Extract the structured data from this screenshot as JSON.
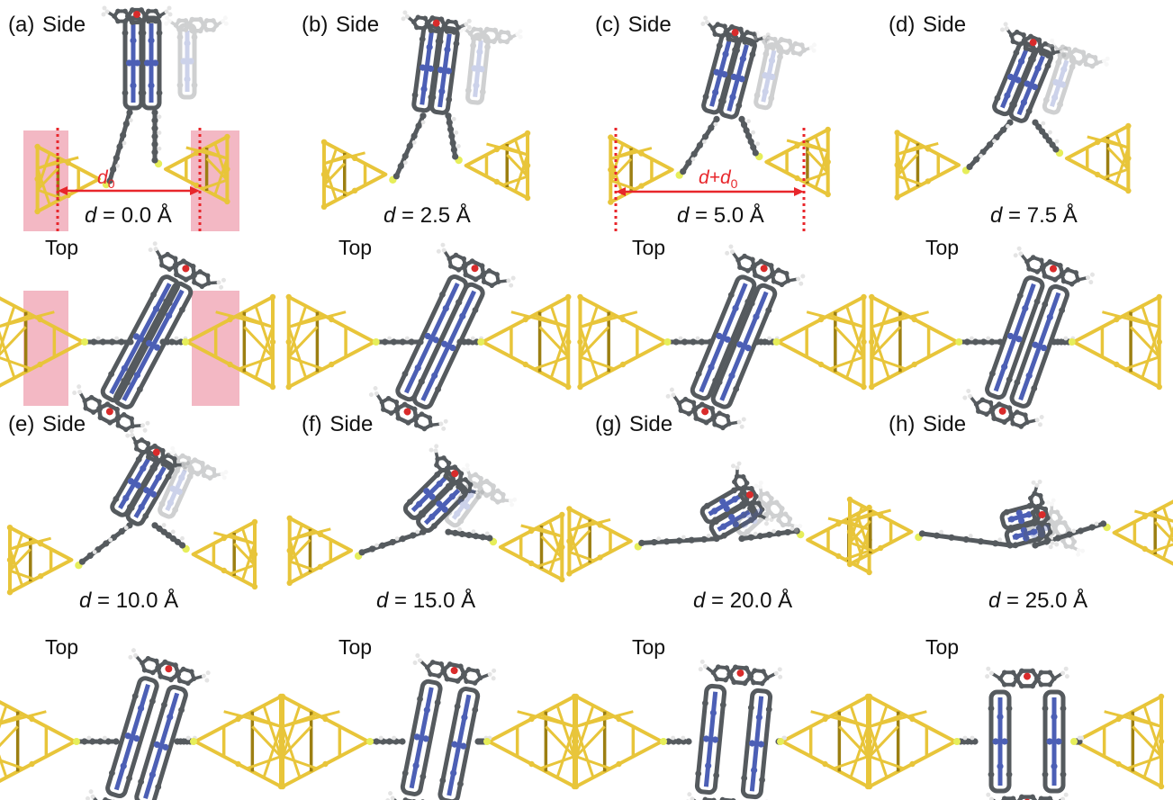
{
  "panels": [
    {
      "tag": "(a)",
      "side": "Side",
      "top": "Top",
      "d_symbol": "d",
      "d_value": "= 0.0 Å",
      "annotation": "d",
      "annotation_sub": "0",
      "shaded": true,
      "separation": 0
    },
    {
      "tag": "(b)",
      "side": "Side",
      "top": "Top",
      "d_symbol": "d",
      "d_value": "= 2.5 Å",
      "annotation": "",
      "annotation_sub": "",
      "shaded": false,
      "separation": 2.5
    },
    {
      "tag": "(c)",
      "side": "Side",
      "top": "Top",
      "d_symbol": "d",
      "d_value": "= 5.0 Å",
      "annotation": "d+d",
      "annotation_sub": "0",
      "shaded": false,
      "separation": 5.0
    },
    {
      "tag": "(d)",
      "side": "Side",
      "top": "Top",
      "d_symbol": "d",
      "d_value": "= 7.5 Å",
      "annotation": "",
      "annotation_sub": "",
      "shaded": false,
      "separation": 7.5
    },
    {
      "tag": "(e)",
      "side": "Side",
      "top": "Top",
      "d_symbol": "d",
      "d_value": "= 10.0 Å",
      "annotation": "",
      "annotation_sub": "",
      "shaded": false,
      "separation": 10.0
    },
    {
      "tag": "(f)",
      "side": "Side",
      "top": "Top",
      "d_symbol": "d",
      "d_value": "= 15.0 Å",
      "annotation": "",
      "annotation_sub": "",
      "shaded": false,
      "separation": 15.0
    },
    {
      "tag": "(g)",
      "side": "Side",
      "top": "Top",
      "d_symbol": "d",
      "d_value": "= 20.0 Å",
      "annotation": "",
      "annotation_sub": "",
      "shaded": false,
      "separation": 20.0
    },
    {
      "tag": "(h)",
      "side": "Side",
      "top": "Top",
      "d_symbol": "d",
      "d_value": "= 25.0 Å",
      "annotation": "",
      "annotation_sub": "",
      "shaded": false,
      "separation": 25.0
    }
  ],
  "colors": {
    "gold": "#e8c53a",
    "gold_dark": "#9c7f12",
    "sulfur": "#e6ee5a",
    "carbon": "#555a5e",
    "nitrogen": "#4c5fb5",
    "oxygen": "#d92b2b",
    "hydrogen": "#e4e4e4",
    "shade": "#f3b8c4",
    "arrow": "#e8262b"
  }
}
